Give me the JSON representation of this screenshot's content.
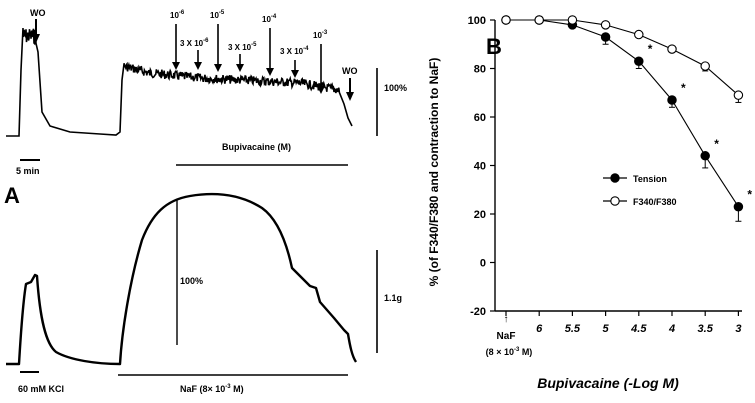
{
  "panel_a": {
    "label": "A",
    "top_trace": {
      "wo_start": "WO",
      "wo_end": "WO",
      "dose_markers": [
        {
          "base": "10",
          "exp": "-6",
          "long": true
        },
        {
          "base": "3 X 10",
          "exp": "-6",
          "long": false
        },
        {
          "base": "10",
          "exp": "-5",
          "long": true
        },
        {
          "base": "3 X 10",
          "exp": "-5",
          "long": false
        },
        {
          "base": "10",
          "exp": "-4",
          "long": true
        },
        {
          "base": "3 X 10",
          "exp": "-4",
          "long": false
        },
        {
          "base": "10",
          "exp": "-3",
          "long": true
        }
      ],
      "drug_label": "Bupivacaine (M)",
      "scale_label": "100%",
      "time_label": "5 min"
    },
    "bottom_trace": {
      "kcl_label": "60 mM KCl",
      "naf_label_prefix": "NaF (8",
      "naf_times": "×",
      "naf_label_mid": " 10",
      "naf_exp": "-3",
      "naf_label_suffix": " M)",
      "inner_label": "100%",
      "scale_label": "1.1g"
    }
  },
  "chart_data": {
    "type": "line",
    "panel_label": "B",
    "title": "",
    "xlabel": "Bupivacaine (-Log M)",
    "ylabel": "% (of F340/F380 and contraction to NaF)",
    "categories": [
      "NaF",
      "6",
      "5.5",
      "5",
      "4.5",
      "4",
      "3.5",
      "3"
    ],
    "naf_note": {
      "arrow": "↑",
      "prefix": "(8 ",
      "times": "×",
      "mid": " 10",
      "exp": "-3",
      "suffix": " M)"
    },
    "ylim": [
      -20,
      100
    ],
    "yticks": [
      -20,
      0,
      20,
      40,
      60,
      80,
      100
    ],
    "series": [
      {
        "name": "Tension",
        "marker": "filled-circle",
        "values": [
          100,
          100,
          98,
          93,
          83,
          67,
          44,
          23
        ],
        "errors": [
          0,
          0,
          1,
          3,
          3,
          3,
          5,
          6
        ],
        "significant": [
          false,
          false,
          false,
          false,
          true,
          true,
          true,
          true
        ]
      },
      {
        "name": "F340/F380",
        "marker": "open-circle",
        "values": [
          100,
          100,
          100,
          98,
          94,
          88,
          81,
          69
        ],
        "errors": [
          0,
          0,
          0,
          1,
          1,
          1,
          2,
          3
        ],
        "significant": [
          false,
          false,
          false,
          false,
          false,
          false,
          false,
          false
        ]
      }
    ],
    "significance_symbol": "*",
    "legend_position": "center-right"
  }
}
